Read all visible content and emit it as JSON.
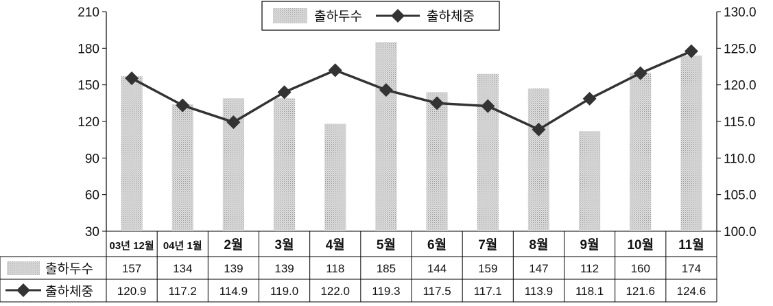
{
  "chart_data": {
    "type": "bar",
    "categories": [
      "03년 12월",
      "04년 1월",
      "2월",
      "3월",
      "4월",
      "5월",
      "6월",
      "7월",
      "8월",
      "9월",
      "10월",
      "11월"
    ],
    "series": [
      {
        "name": "출하두수",
        "type": "bar",
        "axis": "left",
        "color": "#c8c8c8",
        "values": [
          157,
          134,
          139,
          139,
          118,
          185,
          144,
          159,
          147,
          112,
          160,
          174
        ]
      },
      {
        "name": "출하체중",
        "type": "line",
        "axis": "right",
        "color": "#333333",
        "marker": "diamond",
        "values": [
          120.9,
          117.2,
          114.9,
          119.0,
          122.0,
          119.3,
          117.5,
          117.1,
          113.9,
          118.1,
          121.6,
          124.6
        ]
      }
    ],
    "y_left": {
      "min": 30,
      "max": 210,
      "ticks": [
        "30",
        "60",
        "90",
        "120",
        "150",
        "180",
        "210"
      ]
    },
    "y_right": {
      "min": 100,
      "max": 130,
      "ticks": [
        "100.0",
        "105.0",
        "110.0",
        "115.0",
        "120.0",
        "125.0",
        "130.0"
      ]
    },
    "left_tick_values": [
      30,
      60,
      90,
      120,
      150,
      180,
      210
    ],
    "right_tick_values": [
      100,
      105,
      110,
      115,
      120,
      125,
      130
    ],
    "legend": {
      "position": "top-center",
      "entries": [
        "출하두수",
        "출하체중"
      ]
    },
    "grid": false,
    "data_table": {
      "rows": [
        {
          "label": "출하두수",
          "cells": [
            "157",
            "134",
            "139",
            "139",
            "118",
            "185",
            "144",
            "159",
            "147",
            "112",
            "160",
            "174"
          ]
        },
        {
          "label": "출하체중",
          "cells": [
            "120.9",
            "117.2",
            "114.9",
            "119.0",
            "122.0",
            "119.3",
            "117.5",
            "117.1",
            "113.9",
            "118.1",
            "121.6",
            "124.6"
          ]
        }
      ]
    }
  }
}
